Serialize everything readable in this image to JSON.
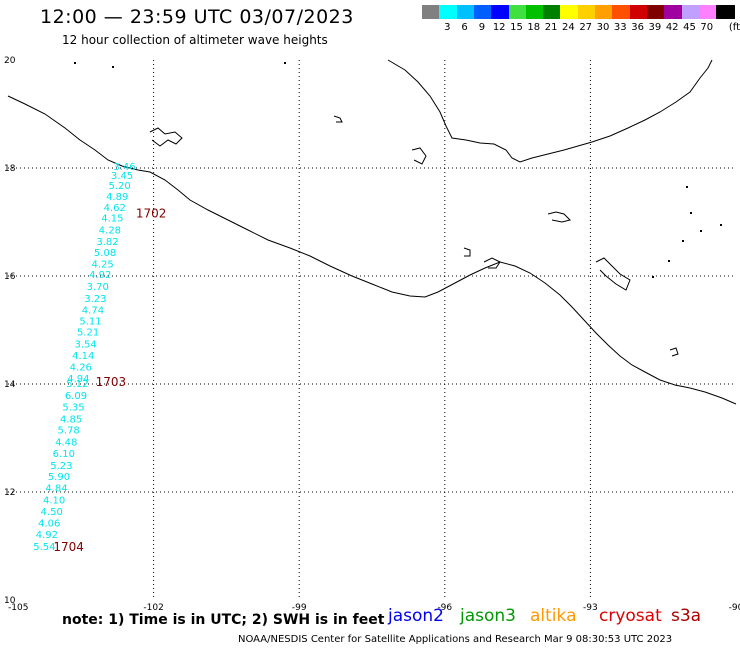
{
  "header": {
    "title": "12:00 — 23:59 UTC 03/07/2023",
    "subtitle": "12 hour collection of altimeter wave heights"
  },
  "colorbar": {
    "unit": "(ft)",
    "entries": [
      {
        "label": "",
        "color": "#808080"
      },
      {
        "label": "3",
        "color": "#00ffff"
      },
      {
        "label": "6",
        "color": "#00c0ff"
      },
      {
        "label": "9",
        "color": "#0060ff"
      },
      {
        "label": "12",
        "color": "#0000ff"
      },
      {
        "label": "15",
        "color": "#40e040"
      },
      {
        "label": "18",
        "color": "#00c000"
      },
      {
        "label": "21",
        "color": "#008000"
      },
      {
        "label": "24",
        "color": "#ffff00"
      },
      {
        "label": "27",
        "color": "#ffd000"
      },
      {
        "label": "30",
        "color": "#ffa000"
      },
      {
        "label": "33",
        "color": "#ff5000"
      },
      {
        "label": "36",
        "color": "#d00000"
      },
      {
        "label": "39",
        "color": "#800000"
      },
      {
        "label": "42",
        "color": "#a000a0"
      },
      {
        "label": "45",
        "color": "#c0a0ff"
      },
      {
        "label": "70",
        "color": "#ff80ff"
      },
      {
        "label": "",
        "color": "#000000"
      }
    ]
  },
  "footer": {
    "note": "note:  1) Time is in UTC;  2) SWH is in feet",
    "satellites": [
      {
        "name": "jason2",
        "color": "#0000ee"
      },
      {
        "name": "jason3",
        "color": "#009900"
      },
      {
        "name": "altika",
        "color": "#ff9900"
      },
      {
        "name": "cryosat",
        "color": "#dd0000"
      },
      {
        "name": "s3a",
        "color": "#aa0000"
      }
    ],
    "credit": "NOAA/NESDIS Center for Satellite Applications and Research    Mar  9 08:30:53 UTC 2023"
  },
  "chart_data": {
    "type": "scatter",
    "title": "12:00 — 23:59 UTC 03/07/2023",
    "xlim": [
      -105,
      -90
    ],
    "ylim": [
      10,
      20
    ],
    "x_ticks": [
      {
        "value": -105,
        "label": "-105"
      },
      {
        "value": -102,
        "label": "-102"
      },
      {
        "value": -99,
        "label": "-99"
      },
      {
        "value": -96,
        "label": "-96"
      },
      {
        "value": -93,
        "label": "-93"
      },
      {
        "value": -90,
        "label": "-90"
      }
    ],
    "y_ticks": [
      {
        "value": 20,
        "label": "20"
      },
      {
        "value": 18,
        "label": "18"
      },
      {
        "value": 16,
        "label": "16"
      },
      {
        "value": 14,
        "label": "14"
      },
      {
        "value": 12,
        "label": "12"
      },
      {
        "value": 10,
        "label": "10"
      }
    ],
    "grid": true,
    "series": [
      {
        "name": "",
        "color": "#00e5ee",
        "points": [
          {
            "lon": -102.6,
            "lat": 17.96,
            "value": "3.46"
          },
          {
            "lon": -102.65,
            "lat": 17.8,
            "value": "3.45"
          },
          {
            "lon": -102.7,
            "lat": 17.61,
            "value": "5.20"
          },
          {
            "lon": -102.75,
            "lat": 17.41,
            "value": "4.89"
          },
          {
            "lon": -102.8,
            "lat": 17.2,
            "value": "4.62"
          },
          {
            "lon": -102.85,
            "lat": 17.01,
            "value": "4.15"
          },
          {
            "lon": -102.9,
            "lat": 16.79,
            "value": "4.28"
          },
          {
            "lon": -102.95,
            "lat": 16.57,
            "value": "3.82"
          },
          {
            "lon": -103.0,
            "lat": 16.37,
            "value": "5.08"
          },
          {
            "lon": -103.05,
            "lat": 16.16,
            "value": "4.25"
          },
          {
            "lon": -103.1,
            "lat": 15.96,
            "value": "4.92"
          },
          {
            "lon": -103.15,
            "lat": 15.74,
            "value": "3.70"
          },
          {
            "lon": -103.2,
            "lat": 15.52,
            "value": "3.23"
          },
          {
            "lon": -103.25,
            "lat": 15.31,
            "value": "4.74"
          },
          {
            "lon": -103.3,
            "lat": 15.1,
            "value": "5.11"
          },
          {
            "lon": -103.35,
            "lat": 14.9,
            "value": "5.21"
          },
          {
            "lon": -103.4,
            "lat": 14.68,
            "value": "3.54"
          },
          {
            "lon": -103.45,
            "lat": 14.46,
            "value": "4.14"
          },
          {
            "lon": -103.5,
            "lat": 14.25,
            "value": "4.26"
          },
          {
            "lon": -103.55,
            "lat": 14.04,
            "value": "4.94"
          },
          {
            "lon": -103.57,
            "lat": 13.94,
            "value": "5.12"
          },
          {
            "lon": -103.6,
            "lat": 13.72,
            "value": "6.09"
          },
          {
            "lon": -103.65,
            "lat": 13.51,
            "value": "5.35"
          },
          {
            "lon": -103.7,
            "lat": 13.29,
            "value": "4.85"
          },
          {
            "lon": -103.75,
            "lat": 13.08,
            "value": "5.78"
          },
          {
            "lon": -103.8,
            "lat": 12.86,
            "value": "4.48"
          },
          {
            "lon": -103.85,
            "lat": 12.65,
            "value": "6.10"
          },
          {
            "lon": -103.9,
            "lat": 12.43,
            "value": "5.23"
          },
          {
            "lon": -103.95,
            "lat": 12.22,
            "value": "5.90"
          },
          {
            "lon": -104.0,
            "lat": 12.01,
            "value": "4.84"
          },
          {
            "lon": -104.05,
            "lat": 11.79,
            "value": "4.10"
          },
          {
            "lon": -104.1,
            "lat": 11.57,
            "value": "4.50"
          },
          {
            "lon": -104.15,
            "lat": 11.36,
            "value": "4.06"
          },
          {
            "lon": -104.2,
            "lat": 11.15,
            "value": "4.92"
          },
          {
            "lon": -104.25,
            "lat": 10.93,
            "value": "5.54"
          }
        ]
      }
    ],
    "time_labels": [
      {
        "lon": -102.05,
        "lat": 17.08,
        "text": "1702",
        "color": "#800000"
      },
      {
        "lon": -102.88,
        "lat": 13.96,
        "text": "1703",
        "color": "#800000"
      },
      {
        "lon": -103.75,
        "lat": 10.91,
        "text": "1704",
        "color": "#800000"
      }
    ]
  }
}
